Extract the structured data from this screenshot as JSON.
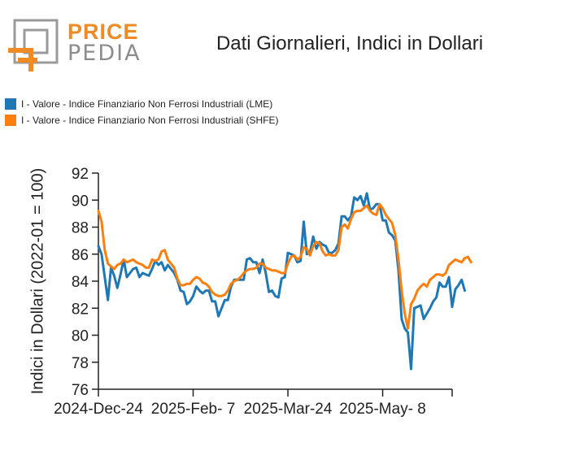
{
  "title": "Dati Giornalieri, Indici in Dollari",
  "logo": {
    "word1": "PRICE",
    "word2": "PEDIA"
  },
  "colors": {
    "lme": "#1f77b4",
    "shfe": "#ff7f0e",
    "logo_orange": "#f08a24",
    "logo_gray": "#9a9a9a"
  },
  "chart_data": {
    "type": "line",
    "ylabel": "Indici in Dollari (2022-01 = 100)",
    "xlabel": "",
    "ylim": [
      76,
      92
    ],
    "yticks": [
      76,
      78,
      80,
      82,
      84,
      86,
      88,
      90,
      92
    ],
    "xticks": [
      "2024-Dec-24",
      "2025-Feb- 7",
      "2025-Mar-24",
      "2025-May- 8"
    ],
    "x_range_index": [
      0,
      112
    ],
    "xtick_index": [
      0,
      30,
      60,
      90
    ],
    "legend": "top-left",
    "series": [
      {
        "name": "I - Valore - Indice Finanziario Non Ferrosi Industriali (LME)",
        "values": [
          86.6,
          86.0,
          84.3,
          82.6,
          85.0,
          84.4,
          83.5,
          84.5,
          85.6,
          84.3,
          84.6,
          84.9,
          85.0,
          84.3,
          84.6,
          84.5,
          84.4,
          84.9,
          85.5,
          85.2,
          85.4,
          84.8,
          85.2,
          84.9,
          84.6,
          84.1,
          83.3,
          83.2,
          82.3,
          82.5,
          82.9,
          83.6,
          83.3,
          83.1,
          83.3,
          83.3,
          82.5,
          82.5,
          81.4,
          82.0,
          82.6,
          82.6,
          83.6,
          84.1,
          84.1,
          84.1,
          84.1,
          85.6,
          85.7,
          85.4,
          85.4,
          84.6,
          85.6,
          84.6,
          83.2,
          83.3,
          82.9,
          82.8,
          84.2,
          84.3,
          86.1,
          86.0,
          85.9,
          85.4,
          85.5,
          88.4,
          86.0,
          86.1,
          87.3,
          86.4,
          86.9,
          86.7,
          86.6,
          86.1,
          86.1,
          86.3,
          86.8,
          88.8,
          88.8,
          88.5,
          88.8,
          90.2,
          90.0,
          90.3,
          89.6,
          90.5,
          89.3,
          89.4,
          89.7,
          89.7,
          88.5,
          88.5,
          87.6,
          87.4,
          87.0,
          84.8,
          81.2,
          80.5,
          80.2,
          77.5,
          82.0,
          82.1,
          82.2,
          81.2,
          81.6,
          82.0,
          82.5,
          82.8,
          83.9,
          83.6,
          83.6,
          84.3,
          82.1,
          83.4,
          83.7,
          84.1,
          83.3
        ],
        "color": "#1f77b4"
      },
      {
        "name": "I - Valore - Indice Finanziario Non Ferrosi Industriali (SHFE)",
        "values": [
          89.2,
          88.4,
          86.3,
          85.3,
          85.1,
          84.9,
          85.2,
          85.3,
          85.6,
          85.4,
          85.5,
          85.6,
          85.4,
          85.3,
          85.2,
          85.0,
          85.0,
          85.6,
          85.5,
          85.6,
          86.2,
          86.3,
          85.6,
          85.3,
          85.0,
          84.2,
          83.7,
          83.7,
          83.8,
          83.8,
          84.1,
          84.3,
          84.2,
          83.9,
          83.8,
          83.6,
          83.2,
          83.0,
          82.9,
          82.9,
          83.0,
          83.3,
          83.8,
          84.0,
          84.1,
          84.3,
          84.6,
          84.8,
          84.9,
          84.9,
          85.0,
          85.3,
          85.3,
          85.0,
          84.9,
          84.8,
          84.8,
          84.7,
          84.6,
          84.6,
          85.3,
          85.8,
          85.9,
          85.6,
          85.8,
          86.5,
          86.4,
          85.9,
          86.6,
          86.9,
          86.8,
          86.2,
          85.9,
          86.0,
          85.9,
          85.9,
          86.3,
          88.0,
          88.2,
          87.9,
          88.6,
          89.1,
          89.2,
          89.2,
          89.4,
          89.6,
          89.2,
          89.0,
          88.9,
          89.7,
          89.4,
          88.9,
          88.6,
          88.3,
          87.4,
          85.6,
          83.3,
          81.6,
          80.5,
          82.3,
          82.7,
          83.3,
          83.6,
          83.8,
          83.6,
          84.1,
          84.3,
          84.5,
          84.5,
          84.4,
          84.6,
          85.2,
          85.4,
          85.6,
          85.5,
          85.4,
          85.7,
          85.8,
          85.4
        ],
        "color": "#ff7f0e"
      }
    ]
  }
}
